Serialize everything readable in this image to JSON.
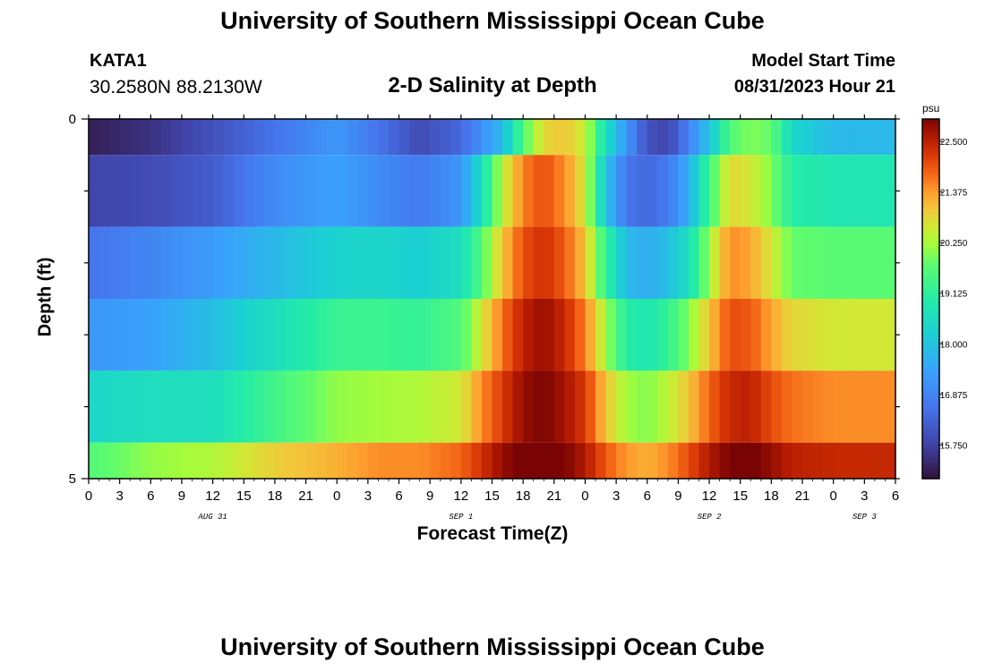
{
  "header": {
    "title": "University of Southern Mississippi Ocean Cube",
    "station": "KATA1",
    "coords": "30.2580N  88.2130W",
    "subtitle": "2-D Salinity at Depth",
    "model_start_label": "Model Start Time",
    "model_start_value": "08/31/2023 Hour 21"
  },
  "footer": {
    "title": "University of Southern Mississippi Ocean Cube"
  },
  "chart_data": {
    "type": "heatmap",
    "title": "2-D Salinity at Depth",
    "xlabel": "Forecast Time(Z)",
    "ylabel": "Depth (ft)",
    "x_unit": "hours since Aug 31 00Z",
    "x_range": [
      0,
      78
    ],
    "y_range": [
      0,
      5
    ],
    "y_ticks": [
      "0",
      "5"
    ],
    "x_tick_labels": [
      "0",
      "3",
      "6",
      "9",
      "12",
      "15",
      "18",
      "21",
      "0",
      "3",
      "6",
      "9",
      "12",
      "15",
      "18",
      "21",
      "0",
      "3",
      "6",
      "9",
      "12",
      "15",
      "18",
      "21",
      "0",
      "3",
      "6"
    ],
    "day_labels": [
      {
        "label": "AUG 31",
        "hour": 12
      },
      {
        "label": "SEP 1",
        "hour": 36
      },
      {
        "label": "SEP 2",
        "hour": 60
      },
      {
        "label": "SEP 3",
        "hour": 75
      }
    ],
    "colorbar": {
      "unit": "psu",
      "min": 15.0,
      "max": 23.0,
      "tick_labels": [
        "22.500",
        "21.375",
        "20.250",
        "19.125",
        "18.000",
        "16.875",
        "15.750"
      ],
      "tick_values": [
        22.5,
        21.375,
        20.25,
        19.125,
        18.0,
        16.875,
        15.75
      ]
    },
    "rows": [
      {
        "depth_top": 0,
        "depth_bottom": 0.5,
        "hours": [
          0,
          6,
          12,
          18,
          24,
          28,
          32,
          36,
          40,
          42,
          44,
          46,
          48,
          50,
          52,
          54,
          56,
          58,
          60,
          62,
          64,
          66,
          68,
          72,
          76,
          78
        ],
        "values": [
          15.2,
          15.5,
          16.0,
          16.6,
          17.2,
          16.6,
          15.9,
          16.4,
          17.8,
          19.6,
          20.8,
          21.0,
          20.5,
          18.6,
          17.2,
          16.0,
          15.8,
          16.8,
          18.0,
          19.6,
          20.0,
          19.8,
          18.4,
          17.8,
          17.8,
          17.8
        ]
      },
      {
        "depth_top": 0.5,
        "depth_bottom": 1.5,
        "hours": [
          0,
          6,
          12,
          18,
          24,
          28,
          32,
          36,
          38,
          40,
          42,
          44,
          46,
          48,
          50,
          52,
          54,
          56,
          58,
          60,
          62,
          64,
          66,
          68,
          72,
          76,
          78
        ],
        "values": [
          15.8,
          15.9,
          16.2,
          17.0,
          17.4,
          17.0,
          16.7,
          17.2,
          18.6,
          20.4,
          21.6,
          22.0,
          21.5,
          20.6,
          18.0,
          16.6,
          16.4,
          16.7,
          17.6,
          19.4,
          20.8,
          20.6,
          20.0,
          19.0,
          18.8,
          18.8,
          18.8
        ]
      },
      {
        "depth_top": 1.5,
        "depth_bottom": 2.5,
        "hours": [
          0,
          6,
          12,
          18,
          24,
          28,
          32,
          36,
          38,
          40,
          42,
          44,
          46,
          48,
          50,
          52,
          54,
          56,
          58,
          60,
          62,
          64,
          66,
          68,
          72,
          76,
          78
        ],
        "values": [
          16.6,
          16.9,
          17.3,
          17.8,
          18.3,
          18.4,
          18.2,
          18.6,
          19.6,
          21.0,
          22.0,
          22.3,
          21.9,
          21.0,
          19.2,
          17.8,
          17.6,
          17.9,
          18.6,
          20.2,
          21.5,
          21.3,
          20.6,
          19.8,
          19.7,
          19.7,
          19.7
        ]
      },
      {
        "depth_top": 2.5,
        "depth_bottom": 3.5,
        "hours": [
          0,
          6,
          12,
          18,
          24,
          28,
          32,
          36,
          38,
          40,
          42,
          44,
          46,
          48,
          50,
          52,
          54,
          56,
          58,
          60,
          62,
          64,
          66,
          68,
          72,
          76,
          78
        ],
        "values": [
          17.2,
          17.4,
          17.9,
          18.6,
          19.3,
          19.3,
          19.2,
          19.6,
          20.6,
          21.7,
          22.5,
          22.8,
          22.4,
          21.6,
          20.2,
          19.0,
          18.8,
          19.2,
          20.0,
          21.0,
          22.0,
          21.9,
          21.3,
          20.8,
          20.6,
          20.6,
          20.6
        ]
      },
      {
        "depth_top": 3.5,
        "depth_bottom": 4.5,
        "hours": [
          0,
          6,
          12,
          18,
          24,
          28,
          32,
          36,
          38,
          40,
          42,
          44,
          46,
          48,
          50,
          52,
          54,
          56,
          58,
          60,
          62,
          64,
          66,
          68,
          72,
          76,
          78
        ],
        "values": [
          18.4,
          18.6,
          18.6,
          19.4,
          20.1,
          20.2,
          20.3,
          20.6,
          21.5,
          22.2,
          22.8,
          23.0,
          22.7,
          22.2,
          21.0,
          20.2,
          20.0,
          20.4,
          21.0,
          21.8,
          22.4,
          22.5,
          22.0,
          21.7,
          21.5,
          21.5,
          21.5
        ]
      },
      {
        "depth_top": 4.5,
        "depth_bottom": 5.0,
        "hours": [
          0,
          6,
          12,
          18,
          24,
          28,
          32,
          36,
          38,
          40,
          42,
          44,
          46,
          48,
          50,
          52,
          54,
          56,
          58,
          60,
          62,
          64,
          66,
          68,
          72,
          76,
          78
        ],
        "values": [
          19.6,
          20.1,
          20.3,
          20.9,
          21.2,
          21.5,
          21.5,
          21.8,
          22.3,
          22.8,
          23.1,
          23.3,
          23.0,
          22.6,
          21.9,
          21.4,
          21.2,
          21.5,
          22.0,
          22.6,
          23.0,
          23.1,
          22.8,
          22.5,
          22.4,
          22.4,
          22.4
        ]
      }
    ]
  }
}
